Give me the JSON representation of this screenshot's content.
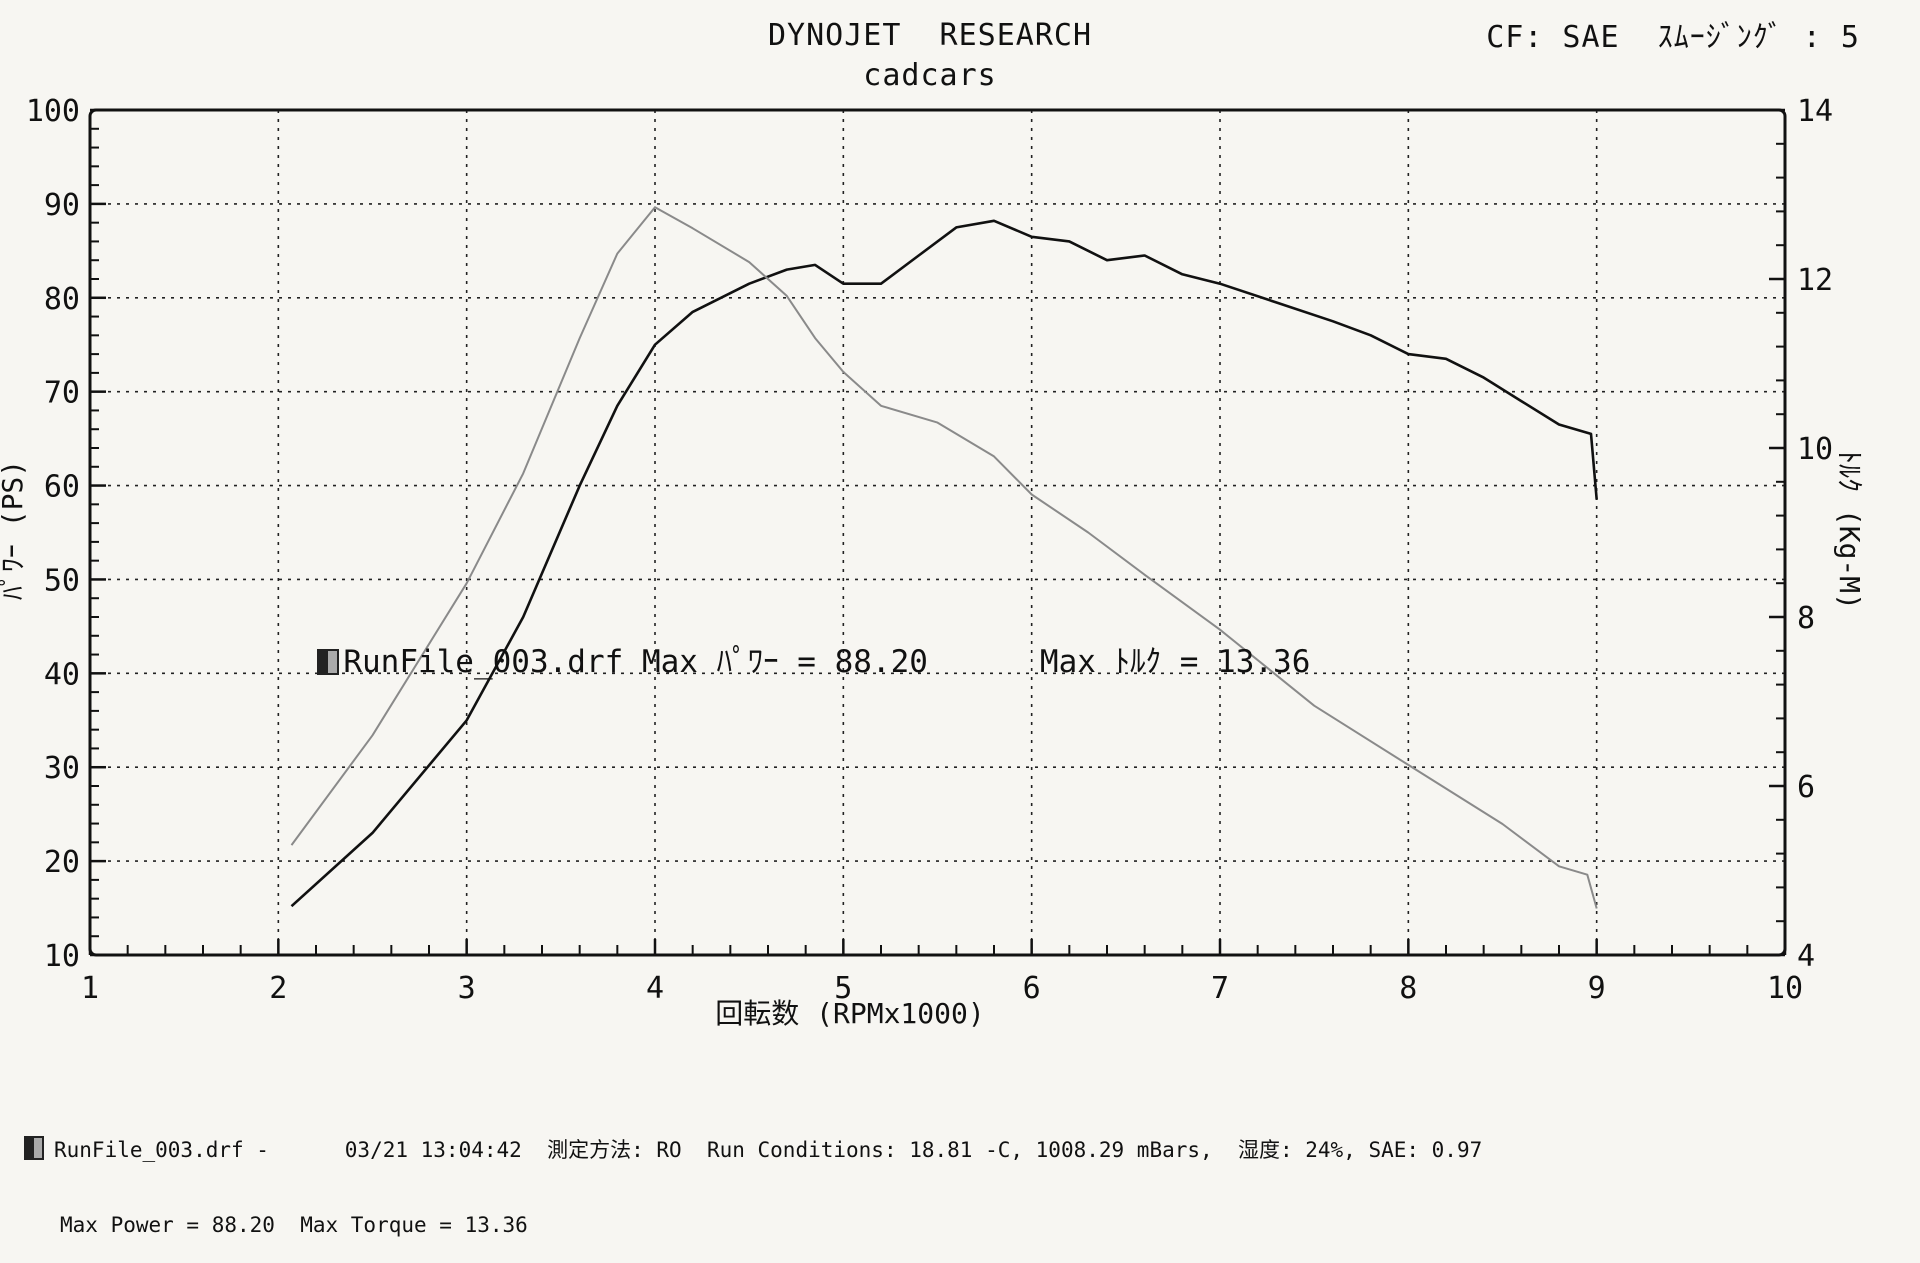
{
  "header": {
    "title": "DYNOJET  RESEARCH",
    "subtitle": "cadcars",
    "cf_label": "CF: SAE  ｽﾑｰｼﾞﾝｸﾞ : 5"
  },
  "annotation": {
    "run": "RunFile_003.drf Max ﾊﾟﾜｰ = 88.20",
    "torque": "Max ﾄﾙｸ = 13.36"
  },
  "footer": {
    "line1": "RunFile_003.drf -      03/21 13:04:42  測定方法: RO  Run Conditions: 18.81 -C, 1008.29 mBars,  湿度: 24%, SAE: 0.97",
    "line2": "Max Power = 88.20  Max Torque = 13.36"
  },
  "chart_data": {
    "type": "line",
    "xlabel": "回転数 (RPMx1000)",
    "ylabel_left": "ﾊﾟﾜｰ (PS)",
    "ylabel_right": "ﾄﾙｸ (Kg-M)",
    "xlim": [
      1,
      10
    ],
    "ylim_left": [
      10,
      100
    ],
    "ylim_right": [
      4,
      14
    ],
    "xticks": [
      1,
      2,
      3,
      4,
      5,
      6,
      7,
      8,
      9,
      10
    ],
    "yticks_left": [
      10,
      20,
      30,
      40,
      50,
      60,
      70,
      80,
      90,
      100
    ],
    "yticks_right": [
      4,
      6,
      8,
      10,
      12,
      14
    ],
    "grid": true,
    "series": [
      {
        "name": "Power",
        "axis": "left",
        "color": "#111111",
        "x": [
          2.07,
          2.5,
          3.0,
          3.3,
          3.6,
          3.8,
          4.0,
          4.2,
          4.5,
          4.7,
          4.85,
          5.0,
          5.2,
          5.4,
          5.6,
          5.8,
          6.0,
          6.2,
          6.4,
          6.6,
          6.8,
          7.0,
          7.3,
          7.6,
          7.8,
          8.0,
          8.2,
          8.4,
          8.6,
          8.8,
          8.97,
          9.0
        ],
        "values": [
          15.2,
          23.0,
          35.0,
          46.0,
          60.0,
          68.5,
          75.0,
          78.5,
          81.5,
          83.0,
          83.5,
          81.5,
          81.5,
          84.5,
          87.5,
          88.2,
          86.5,
          86.0,
          84.0,
          84.5,
          82.5,
          81.5,
          79.5,
          77.5,
          76.0,
          74.0,
          73.5,
          71.5,
          69.0,
          66.5,
          65.5,
          58.5
        ]
      },
      {
        "name": "Torque",
        "axis": "right",
        "color": "#8a8a8a",
        "x": [
          2.07,
          2.5,
          3.0,
          3.3,
          3.6,
          3.8,
          4.0,
          4.2,
          4.5,
          4.7,
          4.85,
          5.0,
          5.2,
          5.5,
          5.8,
          6.0,
          6.3,
          6.6,
          7.0,
          7.5,
          8.0,
          8.5,
          8.8,
          8.95,
          9.0
        ],
        "values": [
          5.3,
          6.6,
          8.4,
          9.7,
          11.3,
          12.3,
          12.85,
          12.6,
          12.2,
          11.8,
          11.3,
          10.9,
          10.5,
          10.3,
          9.9,
          9.45,
          9.0,
          8.5,
          7.85,
          6.95,
          6.25,
          5.55,
          5.05,
          4.95,
          4.55
        ]
      }
    ]
  }
}
